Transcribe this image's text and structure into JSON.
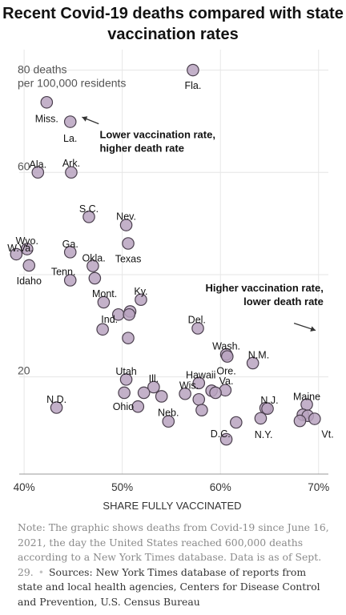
{
  "title": "Recent Covid-19 deaths compared with state vaccination rates",
  "chart_data": {
    "type": "scatter",
    "xlabel": "SHARE FULLY VACCINATED",
    "ylabel": "",
    "xlim": [
      39.5,
      71
    ],
    "ylim": [
      1,
      84
    ],
    "x_ticks": [
      {
        "value": 40,
        "label": "40%"
      },
      {
        "value": 50,
        "label": "50%"
      },
      {
        "value": 60,
        "label": "60%"
      },
      {
        "value": 70,
        "label": "70%"
      }
    ],
    "y_ticks": [
      {
        "value": 20,
        "label": "20"
      },
      {
        "value": 40,
        "label": ""
      },
      {
        "value": 60,
        "label": "60"
      },
      {
        "value": 80,
        "label": ""
      }
    ],
    "y_top_label": [
      "80 deaths",
      "per 100,000 residents"
    ],
    "grid": true,
    "points": [
      {
        "state": "Fla.",
        "x": 57.2,
        "y": 80.0
      },
      {
        "state": "Miss.",
        "x": 42.3,
        "y": 73.7
      },
      {
        "state": "La.",
        "x": 44.7,
        "y": 69.9
      },
      {
        "state": "Ala.",
        "x": 41.4,
        "y": 60.0
      },
      {
        "state": "Ark.",
        "x": 44.8,
        "y": 60.0
      },
      {
        "state": "S.C.",
        "x": 46.6,
        "y": 51.3
      },
      {
        "state": "Nev.",
        "x": 50.4,
        "y": 49.7
      },
      {
        "state": "Texas",
        "x": 50.6,
        "y": 46.1
      },
      {
        "state": "Wyo.",
        "x": 40.3,
        "y": 45.0
      },
      {
        "state": "W.Va.",
        "x": 39.2,
        "y": 44.0
      },
      {
        "state": "Ga.",
        "x": 44.7,
        "y": 44.4
      },
      {
        "state": "Idaho",
        "x": 40.5,
        "y": 41.8
      },
      {
        "state": "Okla.",
        "x": 47.0,
        "y": 41.7
      },
      {
        "state": "Tenn.",
        "x": 44.7,
        "y": 38.9
      },
      {
        "state": "",
        "x": 47.2,
        "y": 39.3
      },
      {
        "state": "Ky.",
        "x": 51.9,
        "y": 35.1
      },
      {
        "state": "Mont.",
        "x": 48.1,
        "y": 34.6
      },
      {
        "state": "",
        "x": 50.8,
        "y": 32.8
      },
      {
        "state": "Ind.",
        "x": 49.6,
        "y": 32.2
      },
      {
        "state": "",
        "x": 50.7,
        "y": 32.2
      },
      {
        "state": "",
        "x": 48.0,
        "y": 29.3
      },
      {
        "state": "",
        "x": 50.6,
        "y": 27.6
      },
      {
        "state": "Del.",
        "x": 57.7,
        "y": 29.5
      },
      {
        "state": "Wash.",
        "x": 60.6,
        "y": 24.4
      },
      {
        "state": "",
        "x": 60.7,
        "y": 24.0
      },
      {
        "state": "N.M.",
        "x": 63.3,
        "y": 22.7
      },
      {
        "state": "Utah",
        "x": 50.4,
        "y": 19.5
      },
      {
        "state": "Hawaii",
        "x": 57.8,
        "y": 18.8
      },
      {
        "state": "Ill.",
        "x": 53.2,
        "y": 18.0
      },
      {
        "state": "Wis.",
        "x": 56.4,
        "y": 16.7
      },
      {
        "state": "Ore.",
        "x": 59.1,
        "y": 17.3
      },
      {
        "state": "Va.",
        "x": 60.5,
        "y": 17.4
      },
      {
        "state": "",
        "x": 59.5,
        "y": 16.9
      },
      {
        "state": "",
        "x": 52.2,
        "y": 16.9
      },
      {
        "state": "Ohio",
        "x": 50.2,
        "y": 16.9
      },
      {
        "state": "",
        "x": 54.0,
        "y": 16.2
      },
      {
        "state": "",
        "x": 57.8,
        "y": 15.6
      },
      {
        "state": "",
        "x": 51.6,
        "y": 14.2
      },
      {
        "state": "",
        "x": 58.1,
        "y": 13.5
      },
      {
        "state": "N.D.",
        "x": 43.3,
        "y": 14.0
      },
      {
        "state": "Neb.",
        "x": 54.7,
        "y": 11.3
      },
      {
        "state": "D.C.",
        "x": 61.6,
        "y": 11.1
      },
      {
        "state": "",
        "x": 60.6,
        "y": 7.8
      },
      {
        "state": "N.J.",
        "x": 64.6,
        "y": 13.9
      },
      {
        "state": "N.Y.",
        "x": 64.1,
        "y": 11.9
      },
      {
        "state": "",
        "x": 64.8,
        "y": 13.8
      },
      {
        "state": "Maine",
        "x": 68.8,
        "y": 14.6
      },
      {
        "state": "",
        "x": 68.4,
        "y": 12.6
      },
      {
        "state": "",
        "x": 68.9,
        "y": 12.4
      },
      {
        "state": "",
        "x": 68.1,
        "y": 11.4
      },
      {
        "state": "Vt.",
        "x": 69.6,
        "y": 11.8
      }
    ],
    "labels": [
      {
        "text": "Fla.",
        "x": 57.2,
        "y": 77.1,
        "anchor": "middle"
      },
      {
        "text": "Miss.",
        "x": 42.3,
        "y": 70.6,
        "anchor": "middle"
      },
      {
        "text": "La.",
        "x": 44.7,
        "y": 66.8,
        "anchor": "middle"
      },
      {
        "text": "Ala.",
        "x": 41.4,
        "y": 61.7,
        "anchor": "middle"
      },
      {
        "text": "Ark.",
        "x": 44.8,
        "y": 61.9,
        "anchor": "middle"
      },
      {
        "text": "S.C.",
        "x": 46.6,
        "y": 53.0,
        "anchor": "middle"
      },
      {
        "text": "Nev.",
        "x": 50.4,
        "y": 51.5,
        "anchor": "middle"
      },
      {
        "text": "Texas",
        "x": 50.6,
        "y": 43.2,
        "anchor": "middle"
      },
      {
        "text": "Wyo.",
        "x": 40.3,
        "y": 46.7,
        "anchor": "middle"
      },
      {
        "text": "W.Va.",
        "x": 38.3,
        "y": 45.3,
        "anchor": "start"
      },
      {
        "text": "Ga.",
        "x": 44.7,
        "y": 46.1,
        "anchor": "middle"
      },
      {
        "text": "Idaho",
        "x": 40.5,
        "y": 38.9,
        "anchor": "middle"
      },
      {
        "text": "Okla.",
        "x": 47.1,
        "y": 43.4,
        "anchor": "middle"
      },
      {
        "text": "Tenn.",
        "x": 44.0,
        "y": 40.7,
        "anchor": "middle"
      },
      {
        "text": "Ky.",
        "x": 51.9,
        "y": 36.9,
        "anchor": "middle"
      },
      {
        "text": "Mont.",
        "x": 48.2,
        "y": 36.4,
        "anchor": "middle"
      },
      {
        "text": "Ind.",
        "x": 48.7,
        "y": 31.4,
        "anchor": "middle"
      },
      {
        "text": "Del.",
        "x": 57.6,
        "y": 31.3,
        "anchor": "middle"
      },
      {
        "text": "Wash.",
        "x": 60.6,
        "y": 26.1,
        "anchor": "middle"
      },
      {
        "text": "N.M.",
        "x": 63.9,
        "y": 24.4,
        "anchor": "middle"
      },
      {
        "text": "Utah",
        "x": 50.4,
        "y": 21.2,
        "anchor": "middle"
      },
      {
        "text": "Hawaii",
        "x": 58.0,
        "y": 20.5,
        "anchor": "middle"
      },
      {
        "text": "Ill.",
        "x": 53.2,
        "y": 19.8,
        "anchor": "middle"
      },
      {
        "text": "Wis.",
        "x": 56.8,
        "y": 18.5,
        "anchor": "middle"
      },
      {
        "text": "Ore.",
        "x": 60.6,
        "y": 21.3,
        "anchor": "middle"
      },
      {
        "text": "Va.",
        "x": 60.6,
        "y": 19.3,
        "anchor": "middle"
      },
      {
        "text": "Ohio",
        "x": 50.1,
        "y": 14.3,
        "anchor": "middle"
      },
      {
        "text": "N.D.",
        "x": 43.3,
        "y": 15.7,
        "anchor": "middle"
      },
      {
        "text": "Neb.",
        "x": 54.7,
        "y": 13.1,
        "anchor": "middle"
      },
      {
        "text": "D.C.",
        "x": 60.0,
        "y": 9.0,
        "anchor": "middle"
      },
      {
        "text": "N.J.",
        "x": 65.0,
        "y": 15.6,
        "anchor": "middle"
      },
      {
        "text": "N.Y.",
        "x": 64.4,
        "y": 8.8,
        "anchor": "middle"
      },
      {
        "text": "Maine",
        "x": 68.8,
        "y": 16.3,
        "anchor": "middle"
      },
      {
        "text": "Vt.",
        "x": 70.3,
        "y": 8.9,
        "anchor": "start"
      }
    ],
    "annotations": [
      {
        "lines": [
          "Lower vaccination rate,",
          "higher death rate"
        ],
        "x": 47.7,
        "y": 67.5,
        "anchor": "start",
        "arrow": {
          "from": [
            47.6,
            69.5
          ],
          "to": [
            45.9,
            70.8
          ]
        }
      },
      {
        "lines": [
          "Higher vaccination rate,",
          "lower death rate"
        ],
        "x": 70.5,
        "y": 37.5,
        "anchor": "end",
        "arrow": {
          "from": [
            67.5,
            30.5
          ],
          "to": [
            69.7,
            29.1
          ]
        }
      }
    ],
    "colors": {
      "point_fill": "#b9a3bf",
      "point_stroke": "#4a3f4d",
      "grid": "#e6e6e6",
      "text": "#121212",
      "annotation": "#333333"
    }
  },
  "note": {
    "text": "Note: The graphic shows deaths from Covid-19 since June 16, 2021, the day the United States reached 600,000 deaths according to a New York Times database. Data is as of Sept. 29.",
    "sep": "•",
    "sources": "Sources: New York Times database of reports from state and local health agencies, Centers for Disease Control and Prevention, U.S. Census Bureau"
  }
}
